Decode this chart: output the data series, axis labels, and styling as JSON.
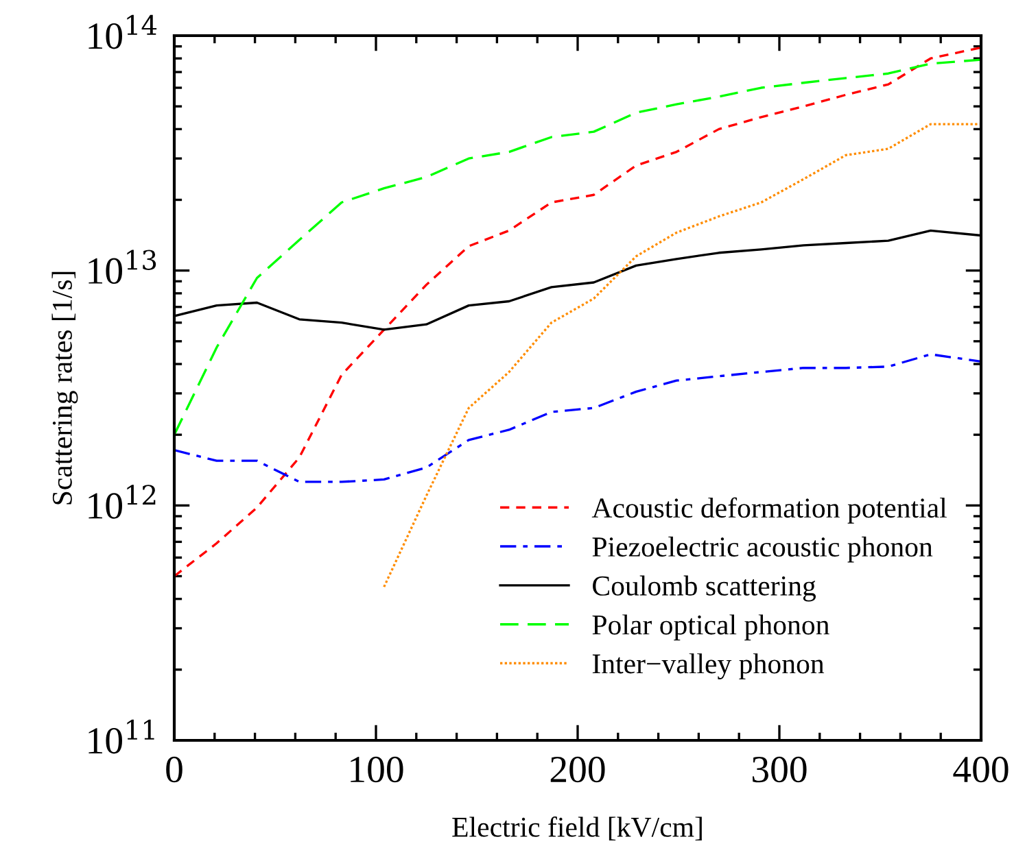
{
  "chart_data": {
    "type": "line",
    "xlabel": "Electric field [kV/cm]",
    "ylabel": "Scattering rates [1/s]",
    "x": [
      0,
      21,
      41,
      62,
      83,
      104,
      125,
      146,
      166,
      187,
      208,
      229,
      249,
      270,
      291,
      312,
      333,
      354,
      375,
      400
    ],
    "series": [
      {
        "name": "Acoustic deformation potential",
        "color": "#ff0000",
        "line_style": "dashed",
        "values": [
          500000000000.0,
          690000000000.0,
          980000000000.0,
          1600000000000.0,
          3600000000000.0,
          5600000000000.0,
          8700000000000.0,
          12700000000000.0,
          14800000000000.0,
          19500000000000.0,
          21000000000000.0,
          28000000000000.0,
          32000000000000.0,
          40000000000000.0,
          45000000000000.0,
          50000000000000.0,
          56000000000000.0,
          62000000000000.0,
          80000000000000.0,
          89000000000000.0
        ]
      },
      {
        "name": "Piezoelectric acoustic phonon",
        "color": "#0000ff",
        "line_style": "dashdot",
        "values": [
          1720000000000.0,
          1550000000000.0,
          1550000000000.0,
          1260000000000.0,
          1260000000000.0,
          1290000000000.0,
          1450000000000.0,
          1900000000000.0,
          2100000000000.0,
          2500000000000.0,
          2600000000000.0,
          3050000000000.0,
          3400000000000.0,
          3550000000000.0,
          3700000000000.0,
          3850000000000.0,
          3850000000000.0,
          3900000000000.0,
          4400000000000.0,
          4100000000000.0
        ]
      },
      {
        "name": "Coulomb scattering",
        "color": "#000000",
        "line_style": "solid",
        "values": [
          6400000000000.0,
          7100000000000.0,
          7300000000000.0,
          6200000000000.0,
          6000000000000.0,
          5600000000000.0,
          5900000000000.0,
          7100000000000.0,
          7400000000000.0,
          8500000000000.0,
          8900000000000.0,
          10500000000000.0,
          11200000000000.0,
          11900000000000.0,
          12300000000000.0,
          12800000000000.0,
          13100000000000.0,
          13400000000000.0,
          14800000000000.0,
          14100000000000.0
        ]
      },
      {
        "name": "Polar optical phonon",
        "color": "#00ff00",
        "line_style": "longdash",
        "values": [
          2000000000000.0,
          4700000000000.0,
          9300000000000.0,
          13500000000000.0,
          19500000000000.0,
          22400000000000.0,
          25000000000000.0,
          30000000000000.0,
          32000000000000.0,
          37000000000000.0,
          39000000000000.0,
          47000000000000.0,
          51000000000000.0,
          55000000000000.0,
          60000000000000.0,
          63000000000000.0,
          66000000000000.0,
          69000000000000.0,
          76000000000000.0,
          79000000000000.0
        ]
      },
      {
        "name": "Inter−valley phonon",
        "color": "#ff8c00",
        "line_style": "dotted",
        "x": [
          104,
          125,
          146,
          166,
          187,
          208,
          229,
          249,
          270,
          291,
          312,
          333,
          354,
          375,
          400
        ],
        "values": [
          450000000000.0,
          1100000000000.0,
          2600000000000.0,
          3700000000000.0,
          6000000000000.0,
          7600000000000.0,
          11500000000000.0,
          14500000000000.0,
          17000000000000.0,
          19500000000000.0,
          24500000000000.0,
          31000000000000.0,
          33000000000000.0,
          42000000000000.0,
          42000000000000.0
        ]
      }
    ],
    "log": "y",
    "xlim": [
      0,
      400
    ],
    "xticks": [
      0,
      100,
      200,
      300,
      400
    ],
    "ylim": [
      100000000000.0,
      100000000000000.0
    ],
    "yticks": [
      {
        "value": 100000000000.0,
        "label": "10$^{11}$"
      },
      {
        "value": 1000000000000.0,
        "label": "10$^{12}$"
      },
      {
        "value": 10000000000000.0,
        "label": "10$^{13}$"
      },
      {
        "value": 100000000000000.0,
        "label": "10$^{14}$"
      }
    ],
    "grid": false,
    "legend": "bottom right"
  }
}
